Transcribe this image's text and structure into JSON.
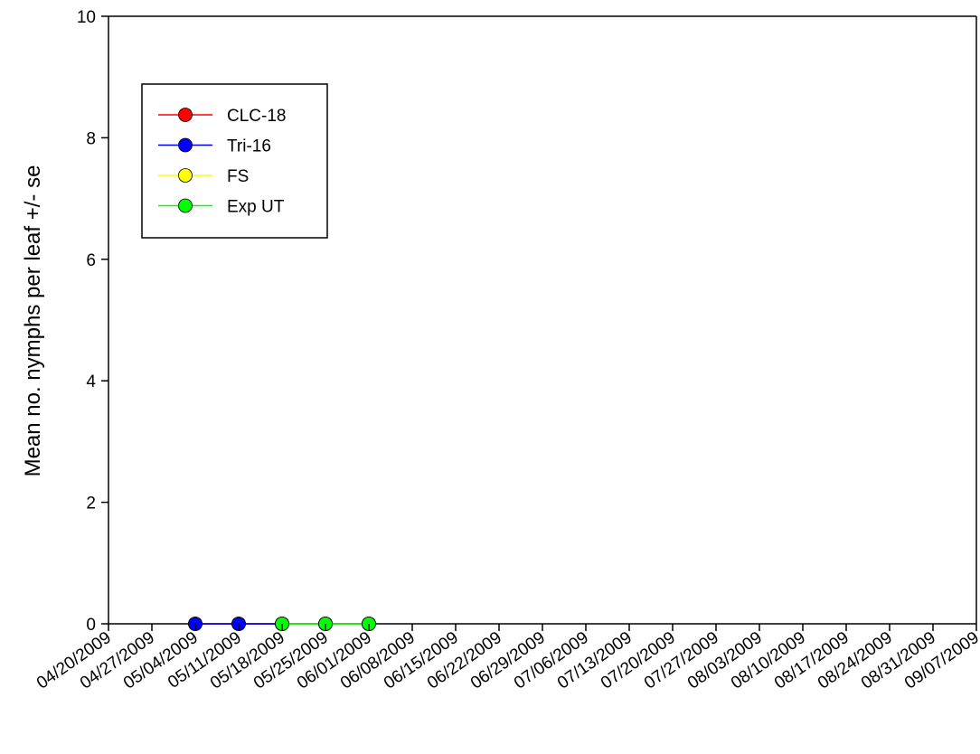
{
  "chart_data": {
    "type": "line",
    "title": "",
    "xlabel": "",
    "ylabel": "Mean no. nymphs per leaf +/- se",
    "ylim": [
      0,
      10
    ],
    "yticks": [
      0,
      2,
      4,
      6,
      8,
      10
    ],
    "x_dates": [
      "04/20/2009",
      "04/27/2009",
      "05/04/2009",
      "05/11/2009",
      "05/18/2009",
      "05/25/2009",
      "06/01/2009",
      "06/08/2009",
      "06/15/2009",
      "06/22/2009",
      "06/29/2009",
      "07/06/2009",
      "07/13/2009",
      "07/20/2009",
      "07/27/2009",
      "08/03/2009",
      "08/10/2009",
      "08/17/2009",
      "08/24/2009",
      "08/31/2009",
      "09/07/2009"
    ],
    "grid": false,
    "legend_position": "top-left",
    "series": [
      {
        "name": "CLC-18",
        "color": "#ff0000",
        "points": [
          [
            "05/04/2009",
            0
          ],
          [
            "05/11/2009",
            0
          ],
          [
            "05/18/2009",
            0
          ],
          [
            "05/25/2009",
            0
          ],
          [
            "06/01/2009",
            0
          ]
        ]
      },
      {
        "name": "Tri-16",
        "color": "#0000ff",
        "points": [
          [
            "05/04/2009",
            0
          ],
          [
            "05/11/2009",
            0
          ],
          [
            "05/18/2009",
            0
          ],
          [
            "05/25/2009",
            0
          ],
          [
            "06/01/2009",
            0
          ]
        ]
      },
      {
        "name": "FS",
        "color": "#ffff00",
        "points": [
          [
            "05/18/2009",
            0
          ],
          [
            "05/25/2009",
            0
          ],
          [
            "06/01/2009",
            0
          ]
        ]
      },
      {
        "name": "Exp UT",
        "color": "#00ff00",
        "points": [
          [
            "05/18/2009",
            0
          ],
          [
            "05/25/2009",
            0
          ],
          [
            "06/01/2009",
            0
          ]
        ]
      }
    ]
  }
}
